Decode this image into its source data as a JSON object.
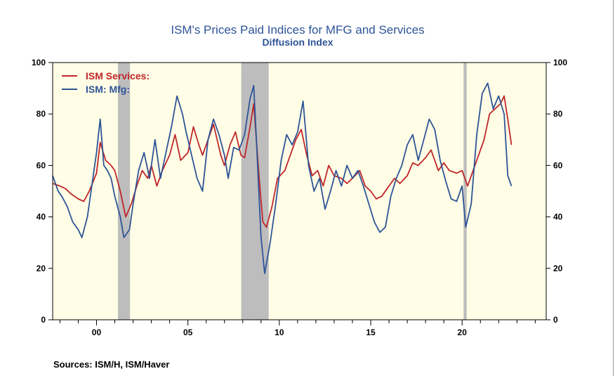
{
  "chart_data": {
    "type": "line",
    "title": "ISM's Prices Paid Indices for MFG and Services",
    "subtitle": "Diffusion Index",
    "xlabel": "",
    "ylabel": "",
    "xlim": [
      1997.6,
      2024.6
    ],
    "ylim": [
      0,
      100
    ],
    "yticks": [
      0,
      20,
      40,
      60,
      80,
      100
    ],
    "xtick_labels": [
      {
        "x": 2000,
        "label": "00"
      },
      {
        "x": 2005,
        "label": "05"
      },
      {
        "x": 2010,
        "label": "10"
      },
      {
        "x": 2015,
        "label": "15"
      },
      {
        "x": 2020,
        "label": "20"
      }
    ],
    "grid": false,
    "legend_position": "top-left",
    "background_color": "#fffde5",
    "recession_color": "#bdbdbd",
    "recessions": [
      [
        2001.17,
        2001.83
      ],
      [
        2007.92,
        2009.42
      ],
      [
        2020.08,
        2020.25
      ]
    ],
    "series": [
      {
        "name": "ISM Services:",
        "color": "#c0262b",
        "x": [
          1997.6,
          1998.0,
          1998.3,
          1998.6,
          1999.0,
          1999.3,
          1999.6,
          2000.0,
          2000.2,
          2000.5,
          2000.8,
          2001.0,
          2001.3,
          2001.6,
          2001.9,
          2002.2,
          2002.5,
          2002.8,
          2003.0,
          2003.3,
          2003.6,
          2004.0,
          2004.3,
          2004.6,
          2005.0,
          2005.3,
          2005.6,
          2005.8,
          2006.1,
          2006.4,
          2006.8,
          2007.0,
          2007.3,
          2007.6,
          2007.9,
          2008.1,
          2008.4,
          2008.6,
          2008.9,
          2009.1,
          2009.3,
          2009.6,
          2009.9,
          2010.3,
          2010.6,
          2010.9,
          2011.2,
          2011.5,
          2011.8,
          2012.1,
          2012.4,
          2012.7,
          2013.0,
          2013.4,
          2013.7,
          2014.0,
          2014.4,
          2014.7,
          2015.0,
          2015.3,
          2015.6,
          2016.0,
          2016.3,
          2016.6,
          2017.0,
          2017.3,
          2017.6,
          2018.0,
          2018.3,
          2018.7,
          2019.0,
          2019.3,
          2019.7,
          2020.0,
          2020.3,
          2020.6,
          2020.9,
          2021.2,
          2021.5,
          2021.8,
          2022.1,
          2022.3,
          2022.5,
          2022.7
        ],
        "values": [
          53,
          52,
          51,
          49,
          47,
          46,
          50,
          57,
          69,
          62,
          60,
          58,
          50,
          40,
          45,
          52,
          58,
          55,
          60,
          52,
          58,
          64,
          72,
          62,
          65,
          75,
          68,
          64,
          70,
          76,
          64,
          60,
          68,
          73,
          64,
          63,
          75,
          84,
          55,
          38,
          36,
          44,
          55,
          58,
          64,
          70,
          74,
          64,
          56,
          58,
          52,
          60,
          56,
          55,
          53,
          55,
          58,
          52,
          50,
          47,
          48,
          52,
          55,
          53,
          56,
          61,
          60,
          63,
          66,
          58,
          61,
          58,
          57,
          58,
          52,
          58,
          64,
          70,
          80,
          82,
          84,
          87,
          78,
          68
        ]
      },
      {
        "name": "ISM: Mfg:",
        "color": "#2e5497",
        "x": [
          1997.6,
          1997.9,
          1998.1,
          1998.4,
          1998.7,
          1999.0,
          1999.2,
          1999.5,
          1999.8,
          2000.0,
          2000.2,
          2000.4,
          2000.6,
          2000.8,
          2001.0,
          2001.3,
          2001.5,
          2001.8,
          2002.0,
          2002.3,
          2002.6,
          2002.9,
          2003.2,
          2003.5,
          2003.8,
          2004.1,
          2004.4,
          2004.7,
          2004.9,
          2005.2,
          2005.5,
          2005.8,
          2006.1,
          2006.4,
          2006.7,
          2007.0,
          2007.2,
          2007.5,
          2007.8,
          2008.1,
          2008.4,
          2008.6,
          2008.8,
          2009.0,
          2009.2,
          2009.5,
          2009.8,
          2010.1,
          2010.4,
          2010.7,
          2011.0,
          2011.3,
          2011.6,
          2011.9,
          2012.2,
          2012.5,
          2012.8,
          2013.1,
          2013.4,
          2013.7,
          2014.0,
          2014.3,
          2014.6,
          2014.9,
          2015.2,
          2015.5,
          2015.8,
          2016.1,
          2016.4,
          2016.7,
          2017.0,
          2017.3,
          2017.6,
          2017.9,
          2018.2,
          2018.5,
          2018.8,
          2019.1,
          2019.4,
          2019.7,
          2020.0,
          2020.2,
          2020.5,
          2020.8,
          2021.1,
          2021.4,
          2021.7,
          2022.0,
          2022.3,
          2022.5,
          2022.7
        ],
        "values": [
          56,
          50,
          48,
          44,
          38,
          35,
          32,
          40,
          55,
          65,
          78,
          60,
          58,
          55,
          48,
          40,
          32,
          35,
          45,
          58,
          65,
          55,
          70,
          55,
          65,
          75,
          87,
          80,
          73,
          64,
          55,
          50,
          70,
          78,
          72,
          64,
          55,
          67,
          66,
          72,
          86,
          91,
          62,
          32,
          18,
          30,
          45,
          62,
          72,
          68,
          73,
          85,
          60,
          50,
          55,
          43,
          50,
          58,
          52,
          60,
          55,
          58,
          52,
          45,
          38,
          34,
          36,
          48,
          55,
          60,
          68,
          72,
          62,
          70,
          78,
          74,
          62,
          54,
          47,
          46,
          52,
          36,
          45,
          72,
          88,
          92,
          82,
          87,
          80,
          56,
          52
        ]
      }
    ]
  },
  "sources": "Sources:  ISM/H, ISM/Haver"
}
